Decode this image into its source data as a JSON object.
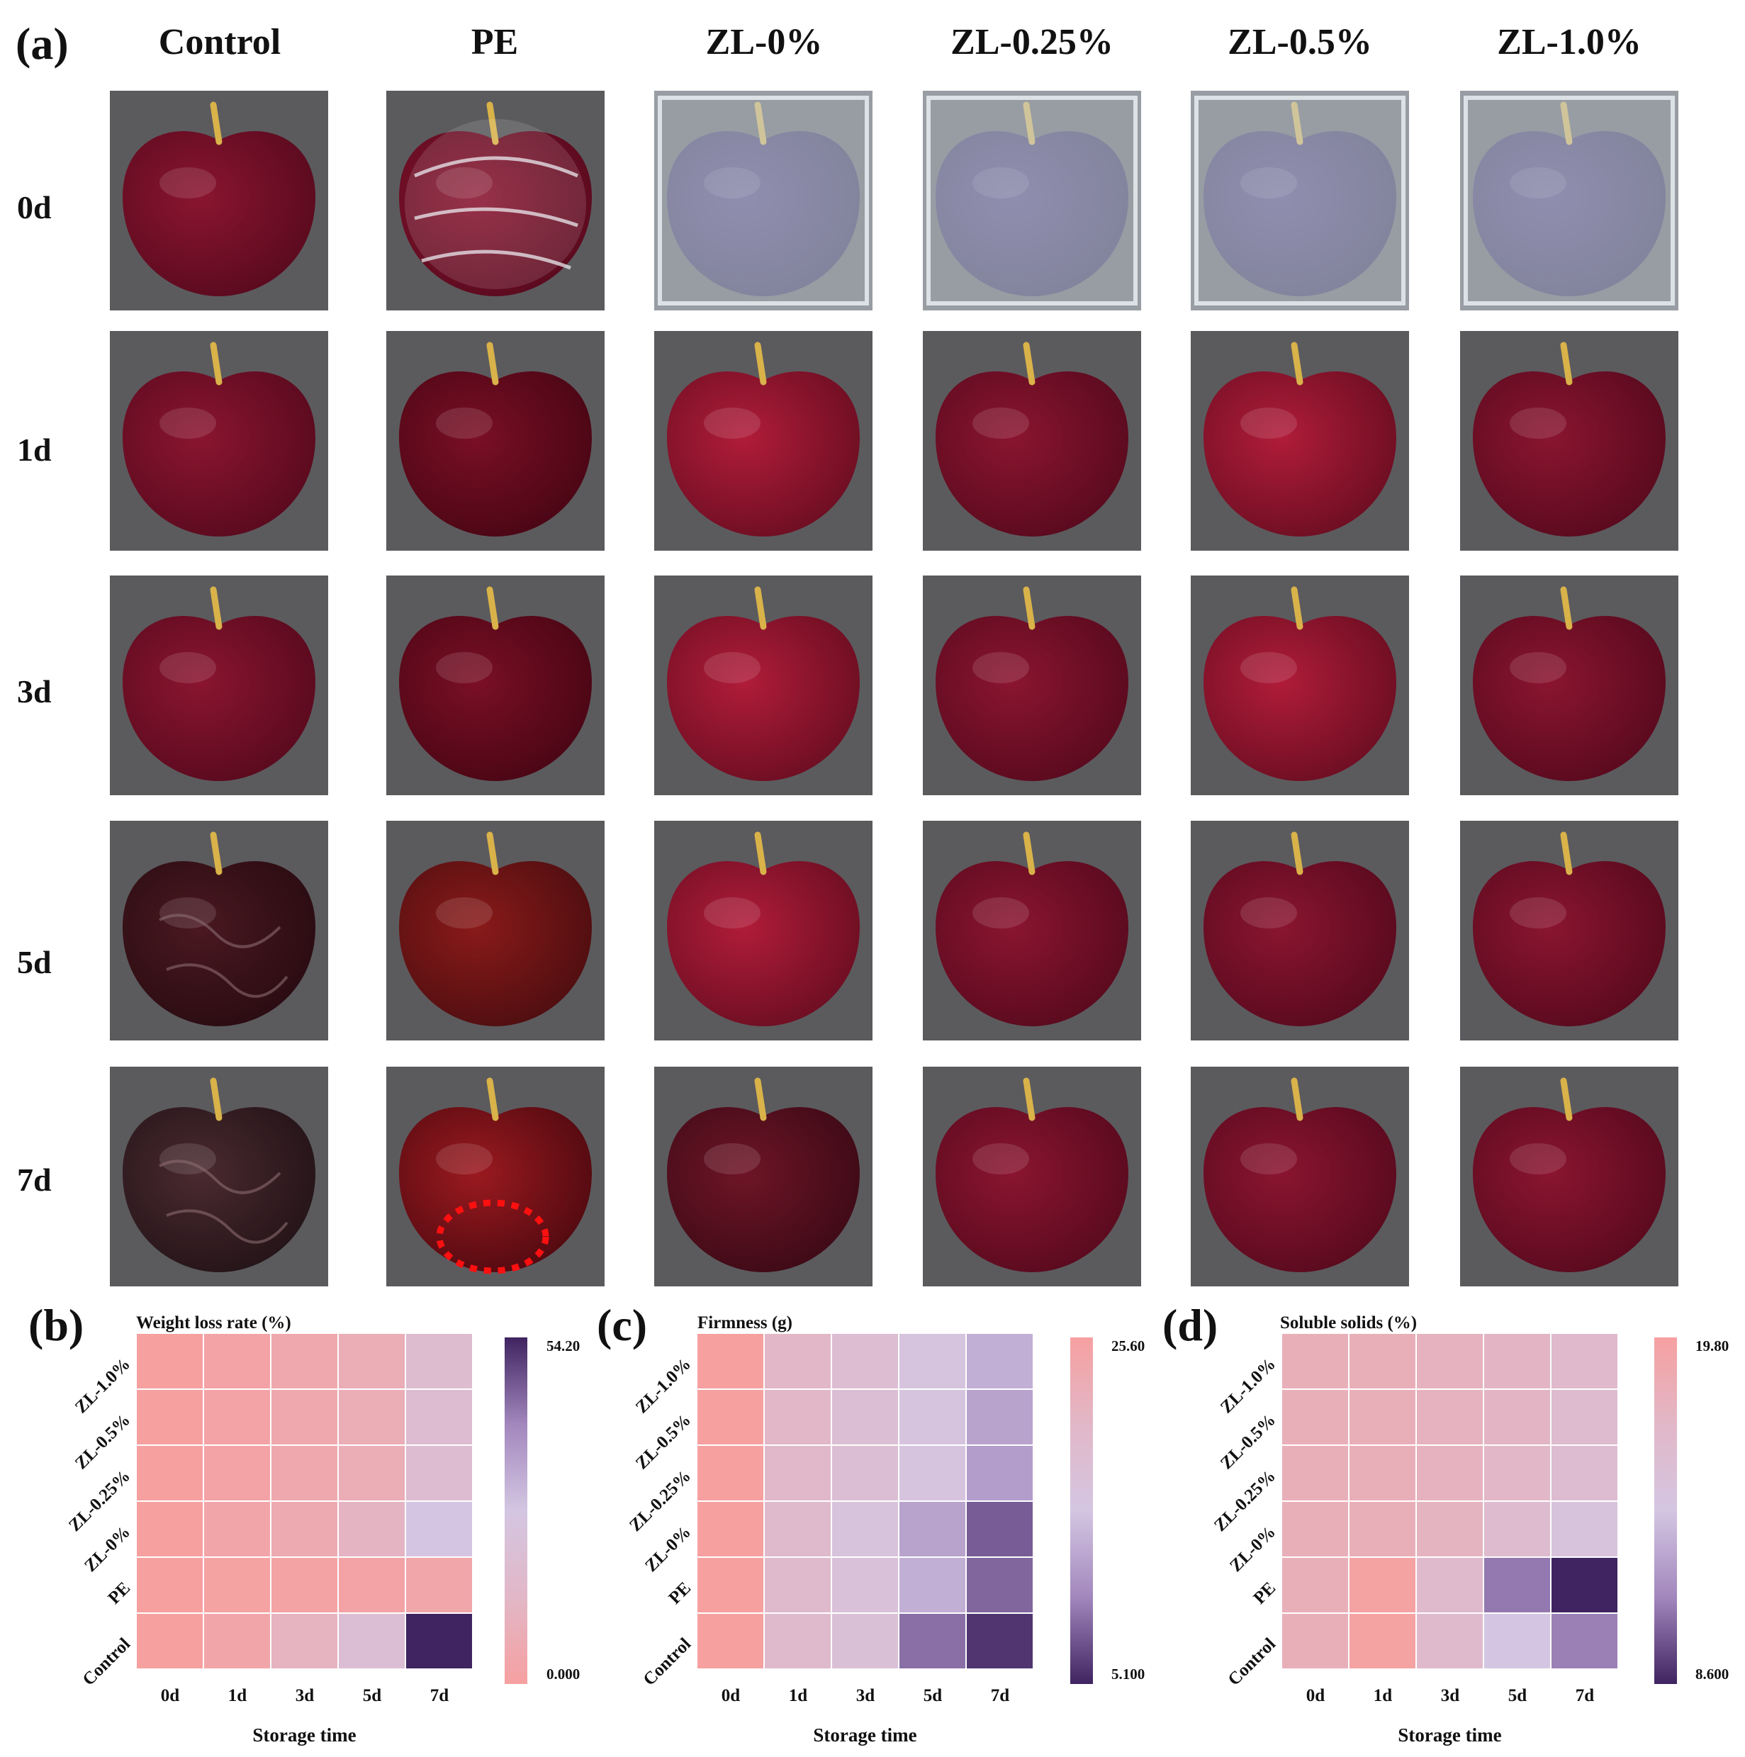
{
  "panel_a": {
    "label": "(a)",
    "columns": [
      "Control",
      "PE",
      "ZL-0%",
      "ZL-0.25%",
      "ZL-0.5%",
      "ZL-1.0%"
    ],
    "rows": [
      "0d",
      "1d",
      "3d",
      "5d",
      "7d"
    ],
    "photo_states": [
      [
        "fresh",
        "wrapped",
        "bagged",
        "bagged",
        "bagged",
        "bagged"
      ],
      [
        "fresh",
        "fresh-glossy",
        "fresh-bright",
        "fresh",
        "fresh-bright",
        "fresh"
      ],
      [
        "fresh",
        "fresh-glossy",
        "fresh-bright",
        "fresh",
        "fresh-bright",
        "fresh"
      ],
      [
        "shriveled",
        "damaged",
        "fresh-bright",
        "fresh",
        "fresh",
        "fresh"
      ],
      [
        "heavily-shriveled",
        "damaged-circled",
        "fresh-dull",
        "fresh",
        "fresh",
        "fresh"
      ]
    ]
  },
  "chart_data": [
    {
      "panel": "(b)",
      "type": "heatmap",
      "title": "Weight loss rate (%)",
      "xlabel": "Storage time",
      "x": [
        "0d",
        "1d",
        "3d",
        "5d",
        "7d"
      ],
      "y": [
        "ZL-1.0%",
        "ZL-0.5%",
        "ZL-0.25%",
        "ZL-0%",
        "PE",
        "Control"
      ],
      "values": [
        [
          0,
          2.0,
          4.5,
          7.5,
          18.0
        ],
        [
          0,
          2.0,
          4.5,
          7.5,
          18.5
        ],
        [
          0,
          2.0,
          4.5,
          7.5,
          18.5
        ],
        [
          0,
          3.0,
          6.0,
          12.0,
          27.0
        ],
        [
          0,
          1.0,
          1.5,
          2.0,
          3.5
        ],
        [
          0,
          3.0,
          11.0,
          20.0,
          54.2
        ]
      ],
      "colorbar": {
        "min": 0,
        "max": 54.2,
        "min_label": "0.000",
        "max_label": "54.20",
        "low_color": "#f6a0a0",
        "high_color": "#3f2461"
      }
    },
    {
      "panel": "(c)",
      "type": "heatmap",
      "title": "Firmness (g)",
      "xlabel": "Storage time",
      "x": [
        "0d",
        "1d",
        "3d",
        "5d",
        "7d"
      ],
      "y": [
        "ZL-1.0%",
        "ZL-0.5%",
        "ZL-0.25%",
        "ZL-0%",
        "PE",
        "Control"
      ],
      "values": [
        [
          25.6,
          20.5,
          18.5,
          16.0,
          13.5
        ],
        [
          25.6,
          20.5,
          18.0,
          16.0,
          12.5
        ],
        [
          25.6,
          20.0,
          18.0,
          16.0,
          12.0
        ],
        [
          25.6,
          19.5,
          16.5,
          12.5,
          8.0
        ],
        [
          25.6,
          19.5,
          17.0,
          13.5,
          8.5
        ],
        [
          25.6,
          19.5,
          17.5,
          9.0,
          6.0
        ]
      ],
      "colorbar": {
        "min": 5.1,
        "max": 25.6,
        "min_label": "5.100",
        "max_label": "25.60",
        "low_color": "#3f2461",
        "high_color": "#f6a0a0"
      }
    },
    {
      "panel": "(d)",
      "type": "heatmap",
      "title": "Soluble solids (%)",
      "xlabel": "Storage time",
      "x": [
        "0d",
        "1d",
        "3d",
        "5d",
        "7d"
      ],
      "y": [
        "ZL-1.0%",
        "ZL-0.5%",
        "ZL-0.25%",
        "ZL-0%",
        "PE",
        "Control"
      ],
      "values": [
        [
          18.0,
          18.0,
          17.6,
          17.2,
          16.5
        ],
        [
          18.0,
          18.0,
          17.6,
          17.2,
          16.2
        ],
        [
          18.0,
          18.0,
          17.6,
          17.0,
          16.0
        ],
        [
          18.0,
          18.0,
          17.4,
          16.2,
          14.8
        ],
        [
          18.0,
          19.6,
          16.4,
          11.0,
          8.6
        ],
        [
          18.0,
          19.6,
          16.4,
          14.2,
          11.2
        ]
      ],
      "colorbar": {
        "min": 8.6,
        "max": 19.8,
        "min_label": "8.600",
        "max_label": "19.80",
        "low_color": "#3f2461",
        "high_color": "#f6a0a0"
      }
    }
  ]
}
